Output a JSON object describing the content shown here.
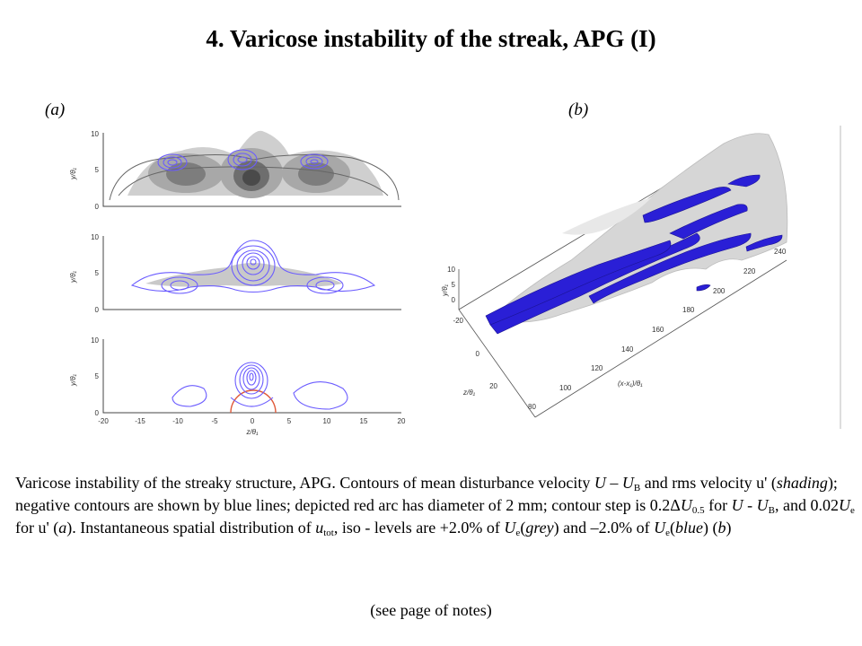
{
  "title": "4. Varicose instability of the streak, APG (I)",
  "panel_a_label": "(a)",
  "panel_b_label": "(b)",
  "fig_a": {
    "y_axis_label": "y/θ₁",
    "x_axis_label": "z/θ₁",
    "y_ticks": [
      "10",
      "5",
      "0"
    ],
    "x_ticks": [
      "-20",
      "-15",
      "-10",
      "-5",
      "0",
      "5",
      "10",
      "15",
      "20"
    ],
    "colors": {
      "negative_contour": "#6b5cff",
      "positive_contour": "#707070",
      "shading": "#9a9a9a",
      "red_arc": "#e05a3a"
    }
  },
  "fig_b": {
    "y_axis_label": "y/θ₁",
    "z_axis_label": "z/θ₁",
    "x_axis_label": "(x-x₁)/θ₁",
    "y_ticks": [
      "10",
      "5",
      "0"
    ],
    "z_ticks": [
      "-20",
      "0",
      "20"
    ],
    "x_ticks": [
      "80",
      "100",
      "120",
      "140",
      "160",
      "180",
      "200",
      "220",
      "240"
    ],
    "colors": {
      "iso_grey": "#d8d8d8",
      "iso_blue": "#2a1fd6"
    }
  },
  "caption": {
    "t1": "Varicose instability of the streaky structure, APG. Contours of mean disturbance velocity ",
    "U": "U",
    "dash": " – ",
    "UB": "U",
    "B": "B",
    "t2": " and rms velocity u' (",
    "shading": "shading",
    "t3": "); negative contours are shown by blue lines; depicted red arc has diameter of 2 mm; contour step is 0.2",
    "delta": "Δ",
    "U2": "U",
    "sub05": "0.5",
    "t4": " for ",
    "U3": "U",
    "t5": " - ",
    "U4": "U",
    "B2": "B",
    "t6": ", and 0.02",
    "U5": "U",
    "e1": "e",
    "t7": " for u' (",
    "a": "a",
    "t8": "). Instantaneous spatial distribution of ",
    "u": "u",
    "tot": "tot",
    "t9": ", iso - levels are +2.0% of ",
    "U6": "U",
    "e2": "e",
    "t10": "(",
    "grey": "grey",
    "t11": ") and –2.0% of ",
    "U7": "U",
    "e3": "e",
    "t12": "(",
    "blue": "blue",
    "t13": ") (",
    "b": "b",
    "t14": ")"
  },
  "footnote": "(see page of notes)"
}
